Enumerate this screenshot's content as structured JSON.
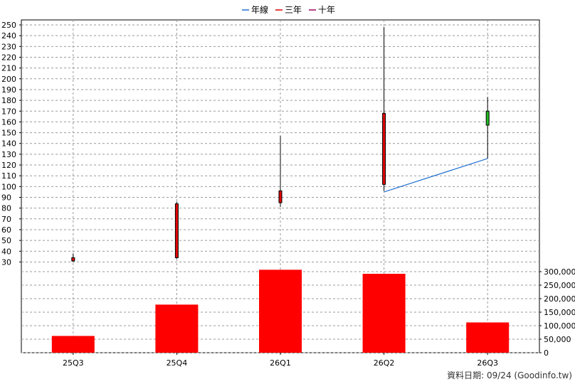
{
  "chart_data": {
    "type": "candlestick",
    "categories": [
      "25Q3",
      "25Q4",
      "26Q1",
      "26Q2",
      "26Q3"
    ],
    "legend": [
      {
        "label": "年線",
        "color": "#1f6fd0"
      },
      {
        "label": "三年",
        "color": "#e00000"
      },
      {
        "label": "十年",
        "color": "#a00060"
      }
    ],
    "price_axis": {
      "ylim": [
        25,
        252
      ],
      "ticks": [
        30,
        40,
        50,
        60,
        70,
        80,
        90,
        100,
        110,
        120,
        130,
        140,
        150,
        160,
        170,
        180,
        190,
        200,
        210,
        220,
        230,
        240,
        250
      ],
      "tick_labels": [
        "30",
        "40",
        "50",
        "60",
        "70",
        "80",
        "90",
        "100",
        "110",
        "120",
        "130",
        "140",
        "150",
        "160",
        "170",
        "180",
        "190",
        "200",
        "210",
        "220",
        "230",
        "240",
        "250"
      ]
    },
    "volume_axis": {
      "ylim": [
        0,
        300000
      ],
      "ticks": [
        0,
        50000,
        100000,
        150000,
        200000,
        250000,
        300000
      ],
      "tick_labels": [
        "0",
        "50,000",
        "100,000",
        "150,000",
        "200,000",
        "250,000",
        "300,000"
      ]
    },
    "candles": [
      {
        "open": 31,
        "close": 34,
        "high": 38,
        "low": 30,
        "color": "#e00000"
      },
      {
        "open": 34,
        "close": 84,
        "high": 86,
        "low": 33,
        "color": "#e00000"
      },
      {
        "open": 85,
        "close": 96,
        "high": 147,
        "low": 81,
        "color": "#e00000"
      },
      {
        "open": 102,
        "close": 168,
        "high": 248,
        "low": 96,
        "color": "#e00000"
      },
      {
        "open": 157,
        "close": 170,
        "high": 183,
        "low": 126,
        "color": "#22bb22"
      }
    ],
    "annual_line": {
      "color": "#1f6fd0",
      "points": [
        [
          3,
          95
        ],
        [
          4,
          126
        ]
      ]
    },
    "volumes": [
      62000,
      178000,
      307000,
      292000,
      112000
    ],
    "volume_color": "#ff0000",
    "grid": true
  },
  "footer": {
    "text": "資料日期: 09/24  (Goodinfo.tw)"
  }
}
